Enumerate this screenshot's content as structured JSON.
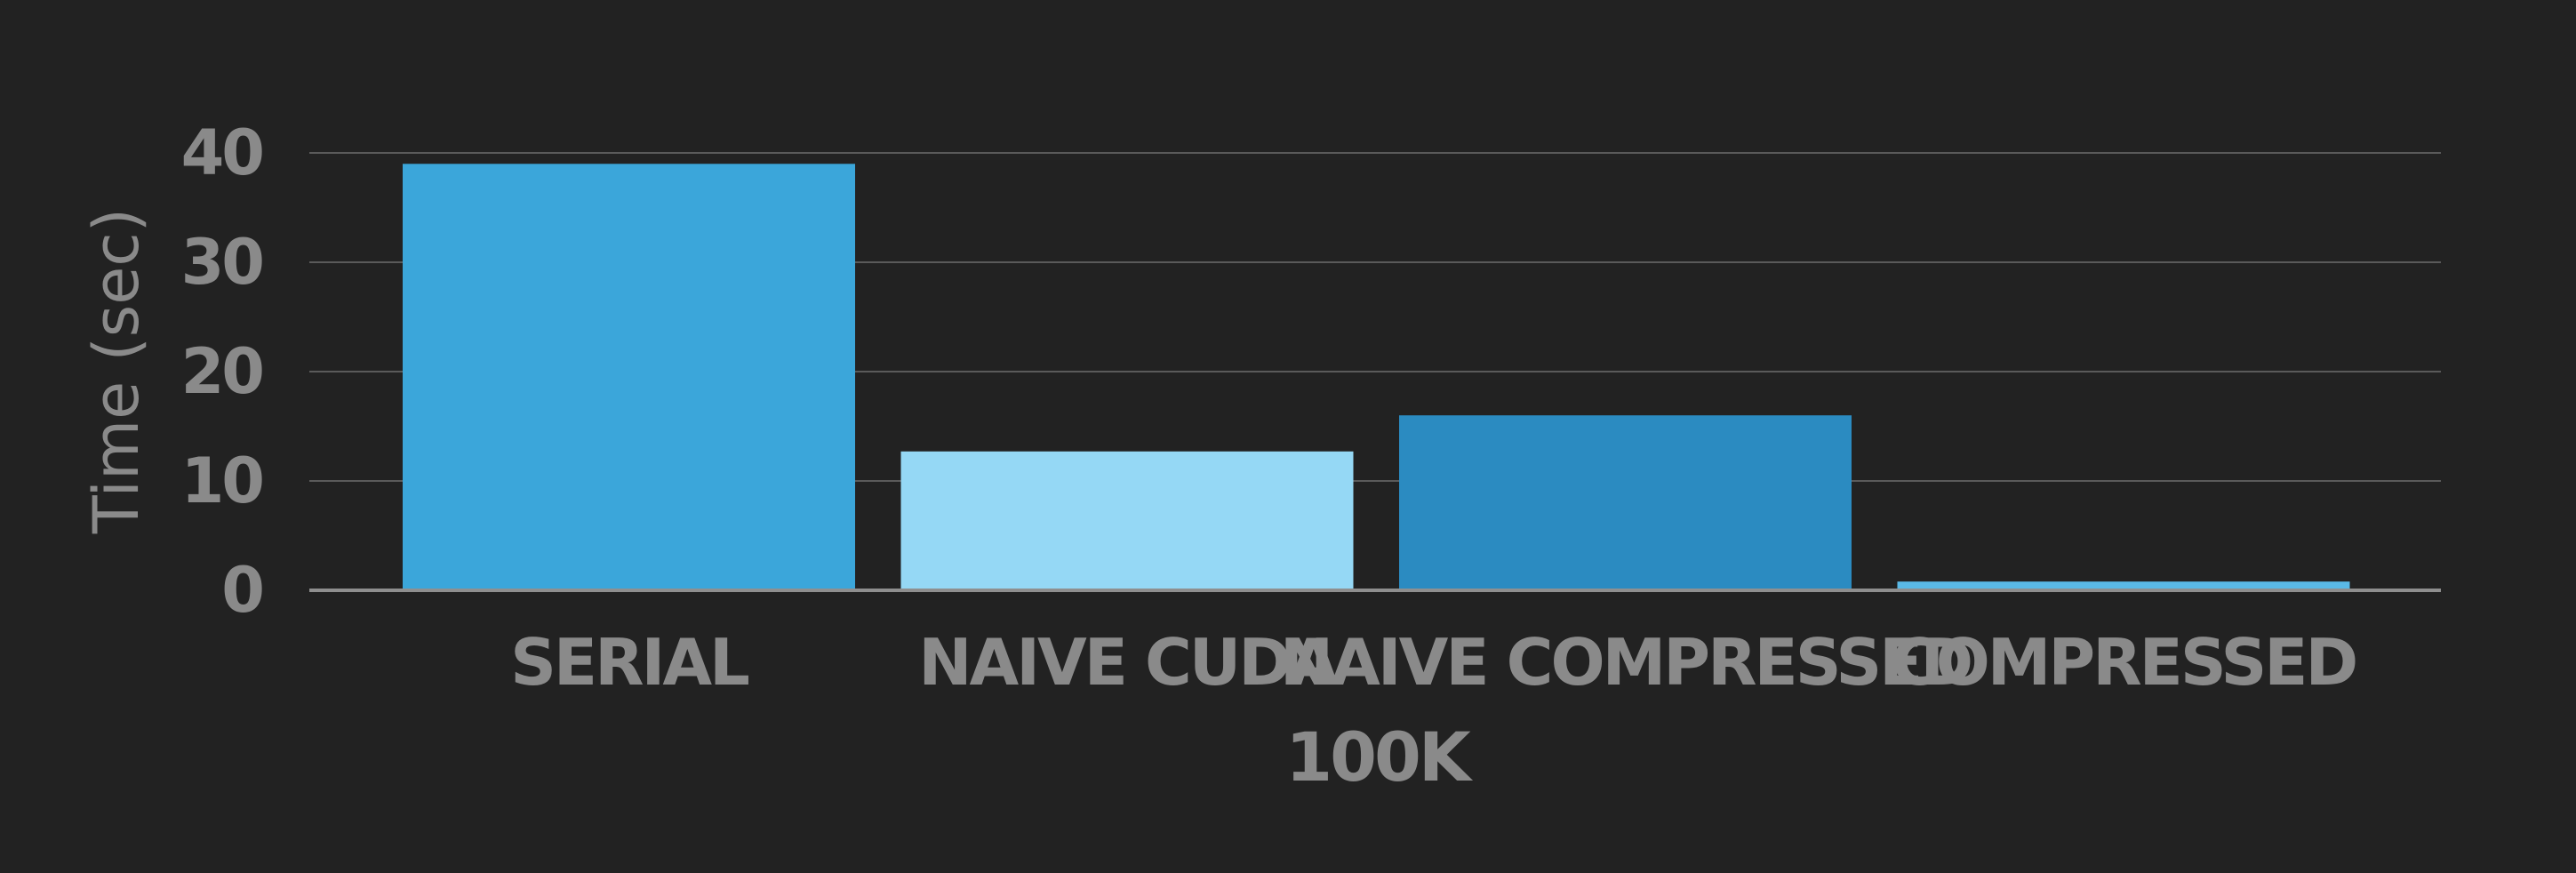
{
  "chart_data": {
    "type": "bar",
    "categories": [
      "SERIAL",
      "NAIVE CUDA",
      "NAIVE COMPRESSED",
      "COMPRESSED"
    ],
    "values": [
      39,
      12.7,
      16,
      0.8
    ],
    "bar_colors": [
      "#3ba6da",
      "#95d8f5",
      "#2b8bc1",
      "#5ab9e6"
    ],
    "group_label": "100K",
    "ylabel": "Time (sec)",
    "ylim": [
      0,
      40
    ],
    "yticks": [
      0,
      10,
      20,
      30,
      40
    ],
    "ytick_labels": [
      "0",
      "10",
      "20",
      "30",
      "40"
    ],
    "grid": true,
    "background": "#222222",
    "text_color": "#8a8a8a"
  }
}
